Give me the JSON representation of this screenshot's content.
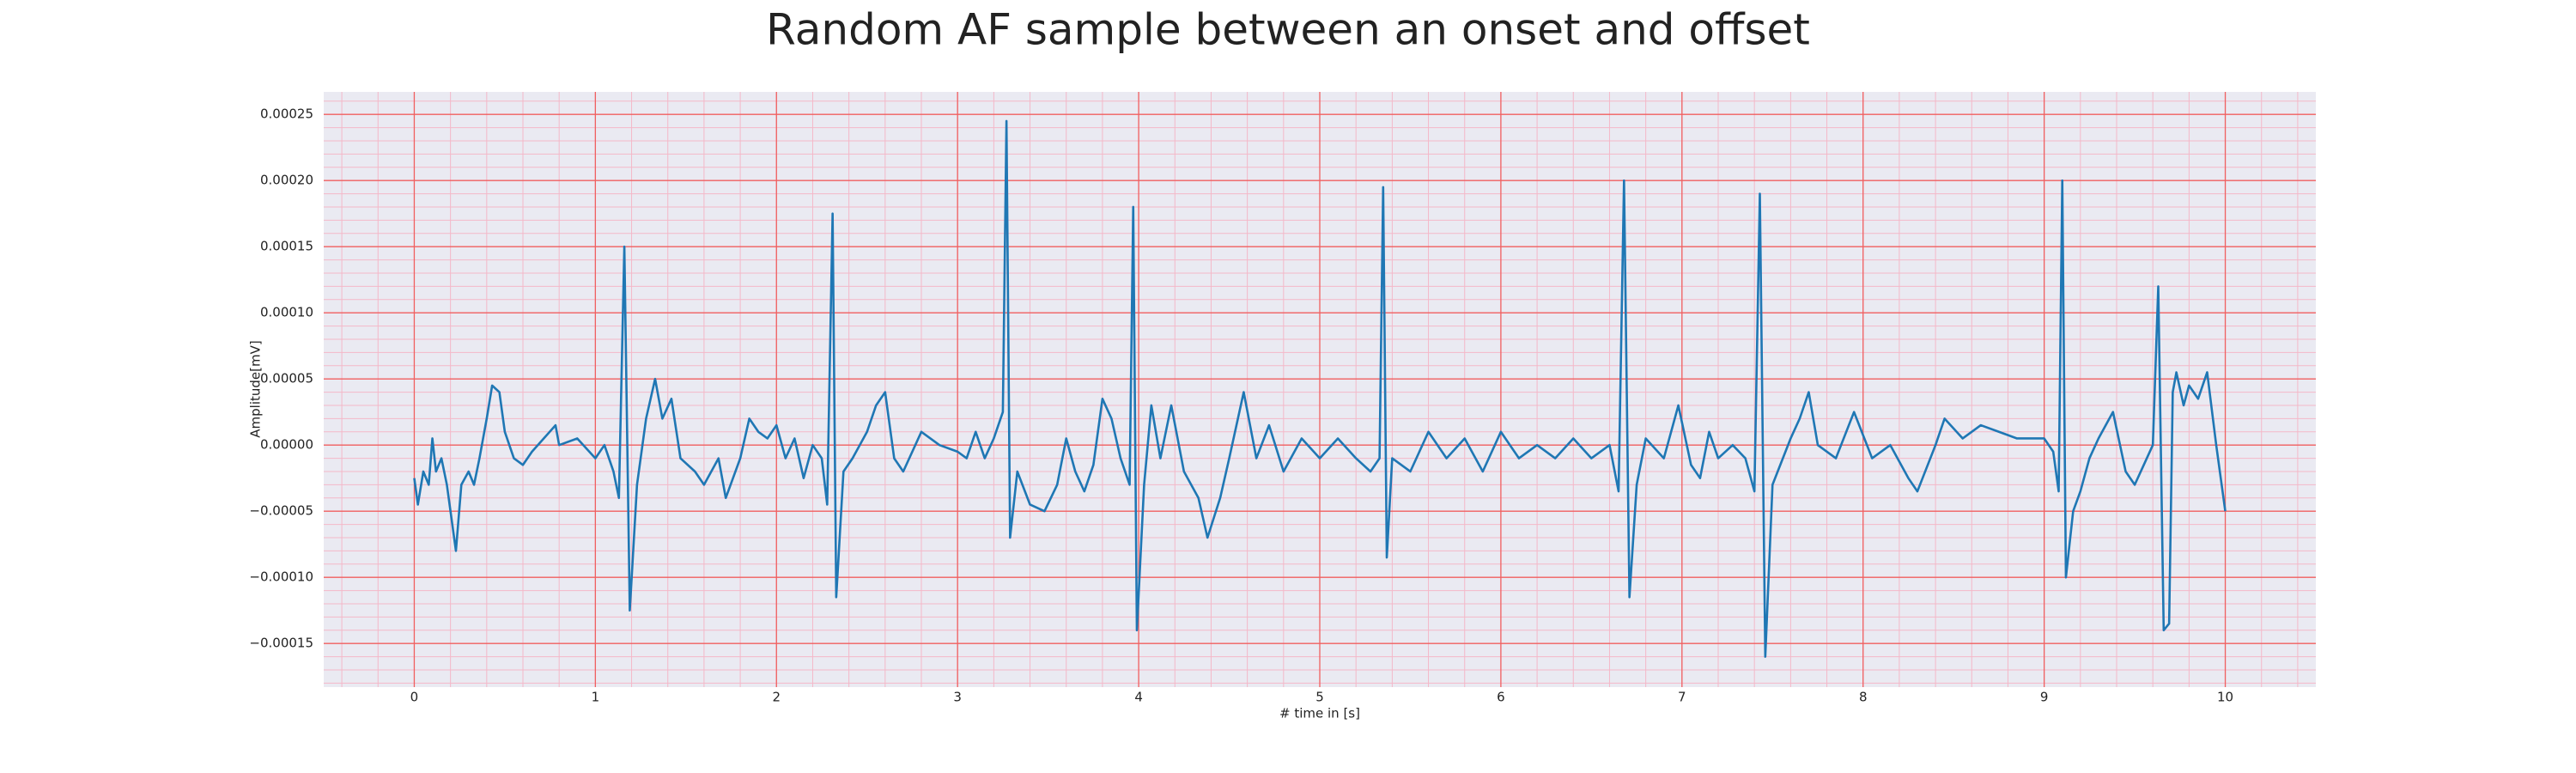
{
  "chart_data": {
    "type": "line",
    "title": "Random AF sample between an onset and offset",
    "xlabel": "# time in [s]",
    "ylabel": "Amplitude[mV]",
    "color": "#1f77b4",
    "grid": true,
    "minor_grid": true,
    "xlim": [
      -0.5,
      10.5
    ],
    "ylim": [
      -0.000183,
      0.000267
    ],
    "xticks": [
      0,
      1,
      2,
      3,
      4,
      5,
      6,
      7,
      8,
      9,
      10
    ],
    "yticks": [
      {
        "value": -0.00015,
        "label": "−0.00015"
      },
      {
        "value": -0.0001,
        "label": "−0.00010"
      },
      {
        "value": -5e-05,
        "label": "−0.00005"
      },
      {
        "value": 0,
        "label": "0.00000"
      },
      {
        "value": 5e-05,
        "label": "0.00005"
      },
      {
        "value": 0.0001,
        "label": "0.00010"
      },
      {
        "value": 0.00015,
        "label": "0.00015"
      },
      {
        "value": 0.0002,
        "label": "0.00020"
      },
      {
        "value": 0.00025,
        "label": "0.00025"
      }
    ],
    "x": [
      0,
      0.02,
      0.05,
      0.08,
      0.1,
      0.12,
      0.15,
      0.18,
      0.2,
      0.23,
      0.26,
      0.3,
      0.33,
      0.36,
      0.4,
      0.43,
      0.47,
      0.5,
      0.55,
      0.6,
      0.65,
      0.78,
      0.8,
      0.9,
      1.0,
      1.05,
      1.1,
      1.13,
      1.16,
      1.19,
      1.23,
      1.28,
      1.33,
      1.37,
      1.42,
      1.47,
      1.55,
      1.6,
      1.68,
      1.72,
      1.8,
      1.85,
      1.9,
      1.95,
      2.0,
      2.05,
      2.1,
      2.15,
      2.2,
      2.25,
      2.28,
      2.31,
      2.33,
      2.37,
      2.42,
      2.5,
      2.55,
      2.6,
      2.65,
      2.7,
      2.8,
      2.9,
      3.0,
      3.05,
      3.1,
      3.15,
      3.2,
      3.25,
      3.27,
      3.29,
      3.33,
      3.4,
      3.48,
      3.55,
      3.6,
      3.65,
      3.7,
      3.75,
      3.8,
      3.85,
      3.9,
      3.95,
      3.97,
      3.99,
      4.03,
      4.07,
      4.12,
      4.18,
      4.25,
      4.33,
      4.38,
      4.45,
      4.5,
      4.58,
      4.65,
      4.72,
      4.8,
      4.9,
      5.0,
      5.1,
      5.2,
      5.28,
      5.33,
      5.35,
      5.37,
      5.4,
      5.5,
      5.6,
      5.7,
      5.8,
      5.9,
      6.0,
      6.1,
      6.2,
      6.3,
      6.4,
      6.5,
      6.6,
      6.65,
      6.68,
      6.71,
      6.75,
      6.8,
      6.9,
      6.98,
      7.05,
      7.1,
      7.15,
      7.2,
      7.28,
      7.35,
      7.4,
      7.43,
      7.46,
      7.5,
      7.6,
      7.65,
      7.7,
      7.75,
      7.85,
      7.95,
      8.05,
      8.15,
      8.25,
      8.3,
      8.4,
      8.45,
      8.55,
      8.65,
      8.75,
      8.85,
      9.0,
      9.05,
      9.08,
      9.1,
      9.12,
      9.16,
      9.2,
      9.25,
      9.3,
      9.38,
      9.45,
      9.5,
      9.55,
      9.6,
      9.63,
      9.66,
      9.69,
      9.71,
      9.73,
      9.77,
      9.8,
      9.85,
      9.9,
      9.95,
      10.0
    ],
    "values": [
      -2.5e-05,
      -4.5e-05,
      -2e-05,
      -3e-05,
      5e-06,
      -2e-05,
      -1e-05,
      -3e-05,
      -5e-05,
      -8e-05,
      -3e-05,
      -2e-05,
      -3e-05,
      -1e-05,
      2e-05,
      4.5e-05,
      4e-05,
      1e-05,
      -1e-05,
      -1.5e-05,
      -5e-06,
      1.5e-05,
      0,
      5e-06,
      -1e-05,
      0,
      -2e-05,
      -4e-05,
      0.00015,
      -0.000125,
      -3e-05,
      2e-05,
      5e-05,
      2e-05,
      3.5e-05,
      -1e-05,
      -2e-05,
      -3e-05,
      -1e-05,
      -4e-05,
      -1e-05,
      2e-05,
      1e-05,
      5e-06,
      1.5e-05,
      -1e-05,
      5e-06,
      -2.5e-05,
      0,
      -1e-05,
      -4.5e-05,
      0.000175,
      -0.000115,
      -2e-05,
      -1e-05,
      1e-05,
      3e-05,
      4e-05,
      -1e-05,
      -2e-05,
      1e-05,
      0,
      -5e-06,
      -1e-05,
      1e-05,
      -1e-05,
      5e-06,
      2.5e-05,
      0.000245,
      -7e-05,
      -2e-05,
      -4.5e-05,
      -5e-05,
      -3e-05,
      5e-06,
      -2e-05,
      -3.5e-05,
      -1.5e-05,
      3.5e-05,
      2e-05,
      -1e-05,
      -3e-05,
      0.00018,
      -0.00014,
      -3e-05,
      3e-05,
      -1e-05,
      3e-05,
      -2e-05,
      -4e-05,
      -7e-05,
      -4e-05,
      -1e-05,
      4e-05,
      -1e-05,
      1.5e-05,
      -2e-05,
      5e-06,
      -1e-05,
      5e-06,
      -1e-05,
      -2e-05,
      -1e-05,
      0.000195,
      -8.5e-05,
      -1e-05,
      -2e-05,
      1e-05,
      -1e-05,
      5e-06,
      -2e-05,
      1e-05,
      -1e-05,
      0,
      -1e-05,
      5e-06,
      -1e-05,
      0,
      -3.5e-05,
      0.0002,
      -0.000115,
      -3e-05,
      5e-06,
      -1e-05,
      3e-05,
      -1.5e-05,
      -2.5e-05,
      1e-05,
      -1e-05,
      0,
      -1e-05,
      -3.5e-05,
      0.00019,
      -0.00016,
      -3e-05,
      5e-06,
      2e-05,
      4e-05,
      0,
      -1e-05,
      2.5e-05,
      -1e-05,
      0,
      -2.5e-05,
      -3.5e-05,
      0,
      2e-05,
      5e-06,
      1.5e-05,
      1e-05,
      5e-06,
      5e-06,
      -5e-06,
      -3.5e-05,
      0.0002,
      -0.0001,
      -5e-05,
      -3.5e-05,
      -1e-05,
      5e-06,
      2.5e-05,
      -2e-05,
      -3e-05,
      -1.5e-05,
      0,
      0.00012,
      -0.00014,
      -0.000135,
      4e-05,
      5.5e-05,
      3e-05,
      4.5e-05,
      3.5e-05,
      5.5e-05,
      0,
      -5e-05
    ]
  }
}
